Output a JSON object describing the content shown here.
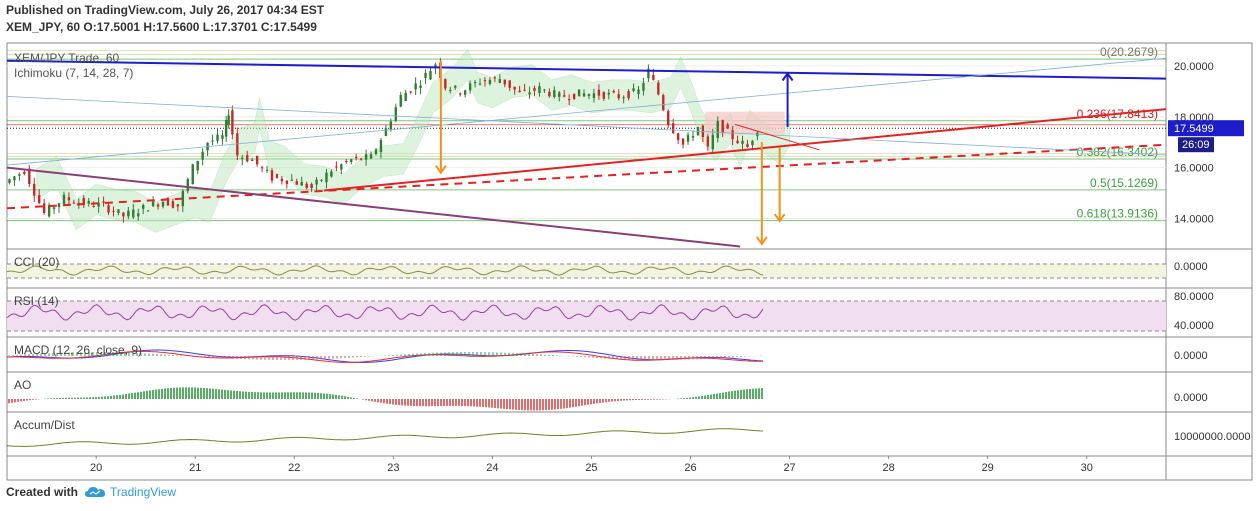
{
  "header": {
    "line1": "Published on TradingView.com, July 26, 2017 04:34 EST",
    "line2": "XEM_JPY, 60  O:17.5001  H:17.5600  L:17.3701  C:17.5499"
  },
  "footer": {
    "created_with": "Created with",
    "brand": "TradingView",
    "brand_icon": "tradingview-cloud-icon"
  },
  "colors": {
    "trendline_blue": "#1d1dcc",
    "trendline_red": "#e32222",
    "trendline_purple": "#8b3f7a",
    "arrow_orange": "#f0931a",
    "arrow_blue": "#1d1dcc",
    "price_tag_bg": "#1d1dcc",
    "fib_line": "#5cb85c",
    "up_candle": "#2e7d32",
    "down_candle": "#c62828",
    "cci_fill": "#f3f3df",
    "rsi_fill": "#f1dff1"
  },
  "chart_data": {
    "type": "candlestick",
    "symbol_label": "XEM/JPY Trade, 60",
    "indicator_label": "Ichimoku (7, 14, 28, 7)",
    "price_axis": {
      "ylim": [
        12.8,
        20.9
      ],
      "ticks": [
        "20.0000",
        "18.0000",
        "16.0000",
        "14.0000"
      ]
    },
    "current_price": "17.5499",
    "countdown": "26:09",
    "x_ticks": [
      "20",
      "21",
      "22",
      "23",
      "24",
      "25",
      "26",
      "27",
      "28",
      "29",
      "30"
    ],
    "x_range_days": [
      19.1,
      30.8
    ],
    "fibonacci": [
      {
        "label": "0(20.2679)",
        "value": 20.2679
      },
      {
        "label": "0.236(17.8413)",
        "value": 17.8413
      },
      {
        "label": "0.382(16.3402)",
        "value": 16.3402
      },
      {
        "label": "0.5(15.1269)",
        "value": 15.1269
      },
      {
        "label": "0.618(13.9136)",
        "value": 13.9136
      }
    ],
    "price_path": [
      [
        19.1,
        15.4
      ],
      [
        19.3,
        15.9
      ],
      [
        19.5,
        14.2
      ],
      [
        19.7,
        14.8
      ],
      [
        19.9,
        14.6
      ],
      [
        20.1,
        14.5
      ],
      [
        20.3,
        14.1
      ],
      [
        20.5,
        14.4
      ],
      [
        20.7,
        14.7
      ],
      [
        20.85,
        14.5
      ],
      [
        21.0,
        16.0
      ],
      [
        21.15,
        17.0
      ],
      [
        21.3,
        17.2
      ],
      [
        21.35,
        18.2
      ],
      [
        21.45,
        16.5
      ],
      [
        21.6,
        16.3
      ],
      [
        21.8,
        15.6
      ],
      [
        22.0,
        15.5
      ],
      [
        22.2,
        15.2
      ],
      [
        22.4,
        15.9
      ],
      [
        22.6,
        16.3
      ],
      [
        22.8,
        16.4
      ],
      [
        22.95,
        17.5
      ],
      [
        23.1,
        18.8
      ],
      [
        23.3,
        19.4
      ],
      [
        23.45,
        20.1
      ],
      [
        23.55,
        19.2
      ],
      [
        23.7,
        19.0
      ],
      [
        23.9,
        19.4
      ],
      [
        24.1,
        19.5
      ],
      [
        24.3,
        18.9
      ],
      [
        24.5,
        19.1
      ],
      [
        24.7,
        18.8
      ],
      [
        24.9,
        18.9
      ],
      [
        25.1,
        18.9
      ],
      [
        25.3,
        18.8
      ],
      [
        25.5,
        19.0
      ],
      [
        25.6,
        19.8
      ],
      [
        25.7,
        18.9
      ],
      [
        25.8,
        17.8
      ],
      [
        25.95,
        16.9
      ],
      [
        26.1,
        17.6
      ],
      [
        26.2,
        16.7
      ],
      [
        26.3,
        17.7
      ],
      [
        26.45,
        17.2
      ],
      [
        26.6,
        16.8
      ],
      [
        26.7,
        17.55
      ]
    ],
    "trendlines": [
      {
        "name": "resistance",
        "color": "blue",
        "from": [
          19.1,
          20.2
        ],
        "to": [
          30.8,
          19.5
        ]
      },
      {
        "name": "support",
        "color": "red",
        "from": [
          22.3,
          15.1
        ],
        "to": [
          30.8,
          18.3
        ]
      },
      {
        "name": "support-dashed",
        "color": "red",
        "dashed": true,
        "from": [
          19.1,
          14.4
        ],
        "to": [
          30.8,
          16.9
        ]
      },
      {
        "name": "falling",
        "color": "purple",
        "from": [
          19.1,
          16.0
        ],
        "to": [
          26.5,
          12.9
        ]
      },
      {
        "name": "channel-thin-1",
        "color": "lightblue",
        "from": [
          19.1,
          16.1
        ],
        "to": [
          30.8,
          20.3
        ]
      },
      {
        "name": "channel-thin-2",
        "color": "lightblue",
        "from": [
          19.1,
          18.8
        ],
        "to": [
          30.8,
          16.5
        ]
      }
    ],
    "projection_arrows": [
      {
        "color": "orange",
        "x": 23.48,
        "from": 20.2,
        "to": 15.8
      },
      {
        "color": "orange",
        "x": 26.72,
        "from": 17.0,
        "to": 13.0
      },
      {
        "color": "orange",
        "x": 26.9,
        "from": 16.8,
        "to": 13.9
      },
      {
        "color": "blue",
        "x": 26.98,
        "from": 17.6,
        "to": 19.7
      }
    ],
    "panes": [
      {
        "label": "CCI (20)",
        "axis": "0.0000"
      },
      {
        "label": "RSI (14)",
        "axis": [
          "80.0000",
          "40.0000"
        ]
      },
      {
        "label": "MACD (12, 26, close, 9)",
        "axis": "0.0000"
      },
      {
        "label": "AO",
        "axis": "0.0000"
      },
      {
        "label": "Accum/Dist",
        "axis": "10000000.0000"
      }
    ]
  }
}
